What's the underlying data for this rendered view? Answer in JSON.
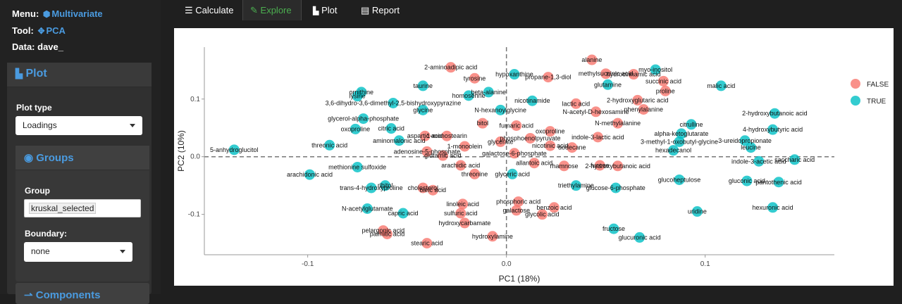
{
  "meta": {
    "menu_label": "Menu:",
    "menu_value": "Multivariate",
    "tool_label": "Tool:",
    "tool_value": "PCA",
    "data_label": "Data:",
    "data_value": "dave_"
  },
  "plot_panel": {
    "title": "Plot",
    "plot_type_label": "Plot type",
    "plot_type_value": "Loadings",
    "groups_title": "Groups",
    "group_label": "Group",
    "group_value": "kruskal_selected",
    "boundary_label": "Boundary:",
    "boundary_value": "none",
    "components_title": "Components"
  },
  "tabs": [
    {
      "label": "Calculate",
      "icon": "sliders-icon"
    },
    {
      "label": "Explore",
      "icon": "edit-icon"
    },
    {
      "label": "Plot",
      "icon": "bar-chart-icon"
    },
    {
      "label": "Report",
      "icon": "file-icon"
    }
  ],
  "colors": {
    "accent": "#4a9be0",
    "active_tab": "#4caf50",
    "false_color": "#F8766D",
    "true_color": "#00BFC4"
  },
  "chart_data": {
    "type": "scatter",
    "xlabel": "PC1 (18%)",
    "ylabel": "PC2 (10%)",
    "xlim": [
      -0.152,
      0.165
    ],
    "ylim": [
      -0.17,
      0.19
    ],
    "xticks": [
      -0.1,
      0.0,
      0.1
    ],
    "xtick_labels": [
      "-0.1",
      "0.0",
      "0.1"
    ],
    "yticks": [
      -0.1,
      0.0,
      0.1
    ],
    "ytick_labels": [
      "-0.1",
      "0.0",
      "0.1"
    ],
    "legend_position": "right",
    "series": [
      {
        "name": "FALSE",
        "points": [
          {
            "x": 0.043,
            "y": 0.168,
            "label": "alanine"
          },
          {
            "x": -0.028,
            "y": 0.155,
            "label": "2-aminoadipic acid"
          },
          {
            "x": -0.016,
            "y": 0.136,
            "label": "tyrosine"
          },
          {
            "x": 0.021,
            "y": 0.138,
            "label": "propane-1,3-diol"
          },
          {
            "x": 0.05,
            "y": 0.144,
            "label": "methylsuccinic acid"
          },
          {
            "x": 0.064,
            "y": 0.143,
            "label": "hydrocinnamic acid"
          },
          {
            "x": 0.079,
            "y": 0.131,
            "label": "succinic acid"
          },
          {
            "x": 0.08,
            "y": 0.114,
            "label": "proline"
          },
          {
            "x": 0.066,
            "y": 0.098,
            "label": "2-hydroxyglutaric acid"
          },
          {
            "x": 0.035,
            "y": 0.092,
            "label": "lactic acid"
          },
          {
            "x": 0.069,
            "y": 0.082,
            "label": "phenylalanine"
          },
          {
            "x": 0.045,
            "y": 0.078,
            "label": "N-acetyl-D-hexosamine"
          },
          {
            "x": 0.056,
            "y": 0.058,
            "label": "N-methylalanine"
          },
          {
            "x": -0.012,
            "y": 0.058,
            "label": "bitol"
          },
          {
            "x": 0.005,
            "y": 0.054,
            "label": "fumaric acid"
          },
          {
            "x": 0.022,
            "y": 0.044,
            "label": "oxoproline"
          },
          {
            "x": -0.03,
            "y": 0.036,
            "label": "1-monostearin"
          },
          {
            "x": -0.041,
            "y": 0.036,
            "label": "aspartic acid"
          },
          {
            "x": 0.046,
            "y": 0.034,
            "label": "indole-3-lactic acid"
          },
          {
            "x": 0.012,
            "y": 0.032,
            "label": "phosphoenolpyruvate"
          },
          {
            "x": -0.003,
            "y": 0.026,
            "label": "glycerate"
          },
          {
            "x": -0.021,
            "y": 0.018,
            "label": "1-monoolein"
          },
          {
            "x": 0.022,
            "y": 0.019,
            "label": "nicotinic acid"
          },
          {
            "x": 0.033,
            "y": 0.016,
            "label": "dodecane"
          },
          {
            "x": -0.04,
            "y": 0.009,
            "label": "adenosine-5-phosphate"
          },
          {
            "x": -0.032,
            "y": 0.002,
            "label": "glutamic acid"
          },
          {
            "x": 0.004,
            "y": 0.006,
            "label": "galactose-6-phosphate"
          },
          {
            "x": 0.014,
            "y": -0.011,
            "label": "allantoic acid"
          },
          {
            "x": 0.029,
            "y": -0.016,
            "label": "rhamnose"
          },
          {
            "x": 0.047,
            "y": -0.015,
            "label": "fucose"
          },
          {
            "x": 0.056,
            "y": -0.016,
            "label": "2-hydroxybutanoic acid"
          },
          {
            "x": -0.023,
            "y": -0.015,
            "label": "arachidic acid"
          },
          {
            "x": -0.016,
            "y": -0.03,
            "label": "threonine"
          },
          {
            "x": -0.037,
            "y": -0.058,
            "label": "oleic acid"
          },
          {
            "x": -0.042,
            "y": -0.054,
            "label": "cholesterol"
          },
          {
            "x": -0.022,
            "y": -0.082,
            "label": "linoleic acid"
          },
          {
            "x": 0.006,
            "y": -0.078,
            "label": "phosphoric acid"
          },
          {
            "x": -0.023,
            "y": -0.098,
            "label": "sulfuric acid"
          },
          {
            "x": 0.005,
            "y": -0.093,
            "label": "galactose"
          },
          {
            "x": 0.018,
            "y": -0.1,
            "label": "glycolic acid"
          },
          {
            "x": 0.024,
            "y": -0.088,
            "label": "benzoic acid"
          },
          {
            "x": -0.021,
            "y": -0.115,
            "label": "hydroxycarbamate"
          },
          {
            "x": -0.007,
            "y": -0.138,
            "label": "hydroxylamine"
          },
          {
            "x": -0.062,
            "y": -0.128,
            "label": "pelargonic acid"
          },
          {
            "x": -0.06,
            "y": -0.134,
            "label": "palmitic acid"
          },
          {
            "x": -0.04,
            "y": -0.15,
            "label": "stearic acid"
          }
        ]
      },
      {
        "name": "TRUE",
        "points": [
          {
            "x": 0.075,
            "y": 0.151,
            "label": "myo-inositol"
          },
          {
            "x": 0.108,
            "y": 0.123,
            "label": "malic acid"
          },
          {
            "x": 0.004,
            "y": 0.143,
            "label": "hypoxanthine"
          },
          {
            "x": -0.042,
            "y": 0.123,
            "label": "taurine"
          },
          {
            "x": -0.073,
            "y": 0.112,
            "label": "ornithine"
          },
          {
            "x": -0.075,
            "y": 0.105,
            "label": "lysine"
          },
          {
            "x": 0.051,
            "y": 0.125,
            "label": "glutamine"
          },
          {
            "x": -0.019,
            "y": 0.106,
            "label": "homoserine"
          },
          {
            "x": -0.009,
            "y": 0.112,
            "label": "beta-alanine"
          },
          {
            "x": -0.057,
            "y": 0.093,
            "label": "3,6-dihydro-3,6-dimethyl-2,5-bishydroxypyrazine"
          },
          {
            "x": -0.042,
            "y": 0.081,
            "label": "glycine"
          },
          {
            "x": -0.003,
            "y": 0.081,
            "label": "N-hexanoylglycine"
          },
          {
            "x": 0.013,
            "y": 0.097,
            "label": "nicotinamide"
          },
          {
            "x": 0.135,
            "y": 0.075,
            "label": "2-hydroxybutanoic acid"
          },
          {
            "x": -0.072,
            "y": 0.066,
            "label": "glycerol-alpha-phosphate"
          },
          {
            "x": -0.076,
            "y": 0.048,
            "label": "oxoproline"
          },
          {
            "x": -0.058,
            "y": 0.049,
            "label": "citric acid"
          },
          {
            "x": 0.093,
            "y": 0.056,
            "label": "citrulline"
          },
          {
            "x": 0.134,
            "y": 0.047,
            "label": "4-hydroxybutyric acid"
          },
          {
            "x": 0.088,
            "y": 0.04,
            "label": "alpha-ketoglutarate"
          },
          {
            "x": 0.087,
            "y": 0.026,
            "label": "3-methyl-1-oxobutyl-glycine"
          },
          {
            "x": 0.12,
            "y": 0.028,
            "label": "3-ureidopropionate"
          },
          {
            "x": -0.089,
            "y": 0.02,
            "label": "threonic acid"
          },
          {
            "x": -0.054,
            "y": 0.028,
            "label": "aminomalonic acid"
          },
          {
            "x": -0.137,
            "y": 0.012,
            "label": "5-anhydroglucitol"
          },
          {
            "x": 0.123,
            "y": 0.016,
            "label": "leucine"
          },
          {
            "x": 0.084,
            "y": 0.011,
            "label": "hexadecanol"
          },
          {
            "x": 0.127,
            "y": -0.008,
            "label": "indole-3-acetic acid"
          },
          {
            "x": 0.145,
            "y": -0.005,
            "label": "saccharic acid"
          },
          {
            "x": -0.075,
            "y": -0.018,
            "label": "methionine sulfoxide"
          },
          {
            "x": -0.099,
            "y": -0.031,
            "label": "arachidonic acid"
          },
          {
            "x": -0.068,
            "y": -0.054,
            "label": "trans-4-hydroxyproline"
          },
          {
            "x": -0.061,
            "y": -0.05,
            "label": "ribitol"
          },
          {
            "x": 0.003,
            "y": -0.03,
            "label": "glyceric acid"
          },
          {
            "x": 0.035,
            "y": -0.05,
            "label": "triethylamine"
          },
          {
            "x": 0.055,
            "y": -0.054,
            "label": "glucose-6-phosphate"
          },
          {
            "x": 0.087,
            "y": -0.04,
            "label": "glucoheptulose"
          },
          {
            "x": 0.121,
            "y": -0.042,
            "label": "gluconic acid"
          },
          {
            "x": 0.137,
            "y": -0.044,
            "label": "pantothenic acid"
          },
          {
            "x": -0.07,
            "y": -0.09,
            "label": "N-acetylglutamate"
          },
          {
            "x": -0.052,
            "y": -0.098,
            "label": "capric acid"
          },
          {
            "x": 0.096,
            "y": -0.095,
            "label": "uridine"
          },
          {
            "x": 0.134,
            "y": -0.088,
            "label": "hexuronic acid"
          },
          {
            "x": 0.054,
            "y": -0.125,
            "label": "fructose"
          },
          {
            "x": 0.067,
            "y": -0.14,
            "label": "glucuronic acid"
          }
        ]
      }
    ]
  }
}
